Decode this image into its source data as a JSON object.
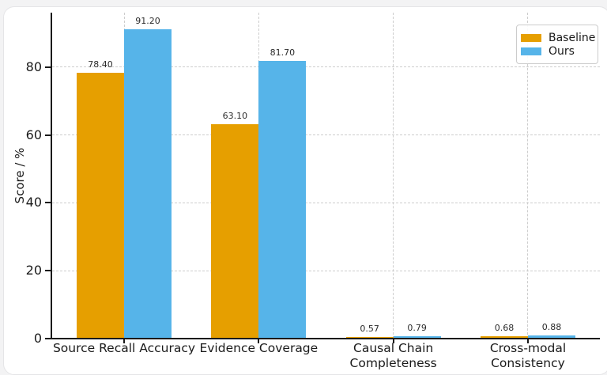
{
  "page": {
    "background_color": "#f3f3f4",
    "card_background": "#ffffff",
    "card_border_color": "#e5e5e7"
  },
  "chart_data": {
    "type": "bar",
    "title": "",
    "xlabel": "",
    "ylabel": "Score / %",
    "categories": [
      "Source Recall Accuracy",
      "Evidence Coverage",
      "Causal Chain\nCompleteness",
      "Cross-modal\nConsistency"
    ],
    "series": [
      {
        "name": "Baseline",
        "color": "#E69F00",
        "values": [
          78.4,
          63.1,
          0.57,
          0.68
        ],
        "value_labels": [
          "78.40",
          "63.10",
          "0.57",
          "0.68"
        ]
      },
      {
        "name": "Ours",
        "color": "#56B4E9",
        "values": [
          91.2,
          81.7,
          0.79,
          0.88
        ],
        "value_labels": [
          "91.20",
          "81.70",
          "0.79",
          "0.88"
        ]
      }
    ],
    "yticks": [
      0,
      20,
      40,
      60,
      80
    ],
    "ytick_labels": [
      "0",
      "20",
      "40",
      "60",
      "80"
    ],
    "ylim": [
      0,
      96
    ],
    "grid": {
      "x": true,
      "y": true,
      "style": "dashed",
      "color": "#cdcdcd"
    },
    "legend": {
      "position": "upper right"
    },
    "axis_color": "#1a1a1a"
  }
}
